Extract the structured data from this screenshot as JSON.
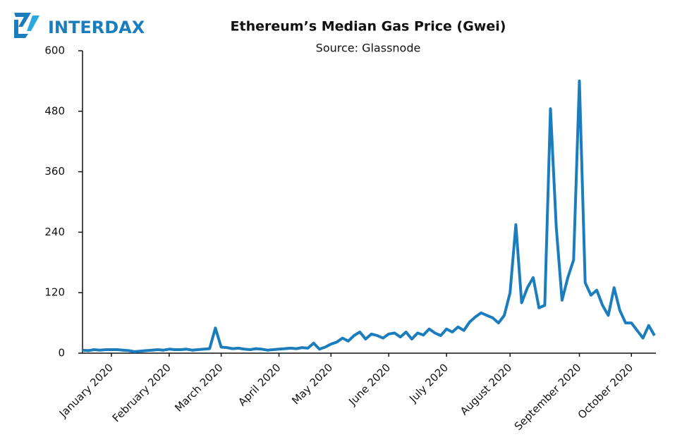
{
  "brand": "INTERDAX",
  "chart_data": {
    "type": "line",
    "title": "Ethereum’s Median Gas Price (Gwei)",
    "subtitle": "Source: Glassnode",
    "categories": [
      null,
      null,
      null,
      null,
      null,
      "January 2020",
      null,
      null,
      null,
      null,
      null,
      null,
      null,
      null,
      null,
      "February 2020",
      null,
      null,
      null,
      null,
      null,
      null,
      null,
      null,
      "March 2020",
      null,
      null,
      null,
      null,
      null,
      null,
      null,
      null,
      null,
      "April 2020",
      null,
      null,
      null,
      null,
      null,
      null,
      null,
      null,
      "May 2020",
      null,
      null,
      null,
      null,
      null,
      null,
      null,
      null,
      null,
      "June 2020",
      null,
      null,
      null,
      null,
      null,
      null,
      null,
      null,
      null,
      "July 2020",
      null,
      null,
      null,
      null,
      null,
      null,
      null,
      null,
      null,
      null,
      "August 2020",
      null,
      null,
      null,
      null,
      null,
      null,
      null,
      null,
      null,
      null,
      null,
      "September 2020",
      null,
      null,
      null,
      null,
      null,
      null,
      null,
      null,
      "October 2020",
      null,
      null,
      null,
      null
    ],
    "series": [
      {
        "color": "#1b7dbd",
        "values": [
          6,
          5,
          7,
          6,
          7,
          7,
          7,
          6,
          5,
          3,
          4,
          5,
          6,
          7,
          6,
          8,
          7,
          7,
          8,
          6,
          7,
          8,
          9,
          50,
          12,
          11,
          9,
          10,
          8,
          7,
          9,
          8,
          6,
          7,
          8,
          9,
          10,
          9,
          11,
          10,
          20,
          8,
          12,
          18,
          22,
          30,
          24,
          35,
          42,
          28,
          38,
          35,
          30,
          38,
          40,
          32,
          42,
          28,
          40,
          36,
          48,
          40,
          35,
          48,
          42,
          52,
          45,
          62,
          72,
          80,
          75,
          70,
          60,
          75,
          120,
          255,
          100,
          130,
          150,
          90,
          95,
          485,
          250,
          105,
          150,
          185,
          540,
          140,
          115,
          125,
          95,
          75,
          130,
          85,
          60,
          60,
          45,
          30,
          55,
          35
        ]
      }
    ],
    "ylim": [
      0,
      600
    ],
    "yticks": [
      0,
      120,
      240,
      360,
      480,
      600
    ],
    "grid": false
  }
}
